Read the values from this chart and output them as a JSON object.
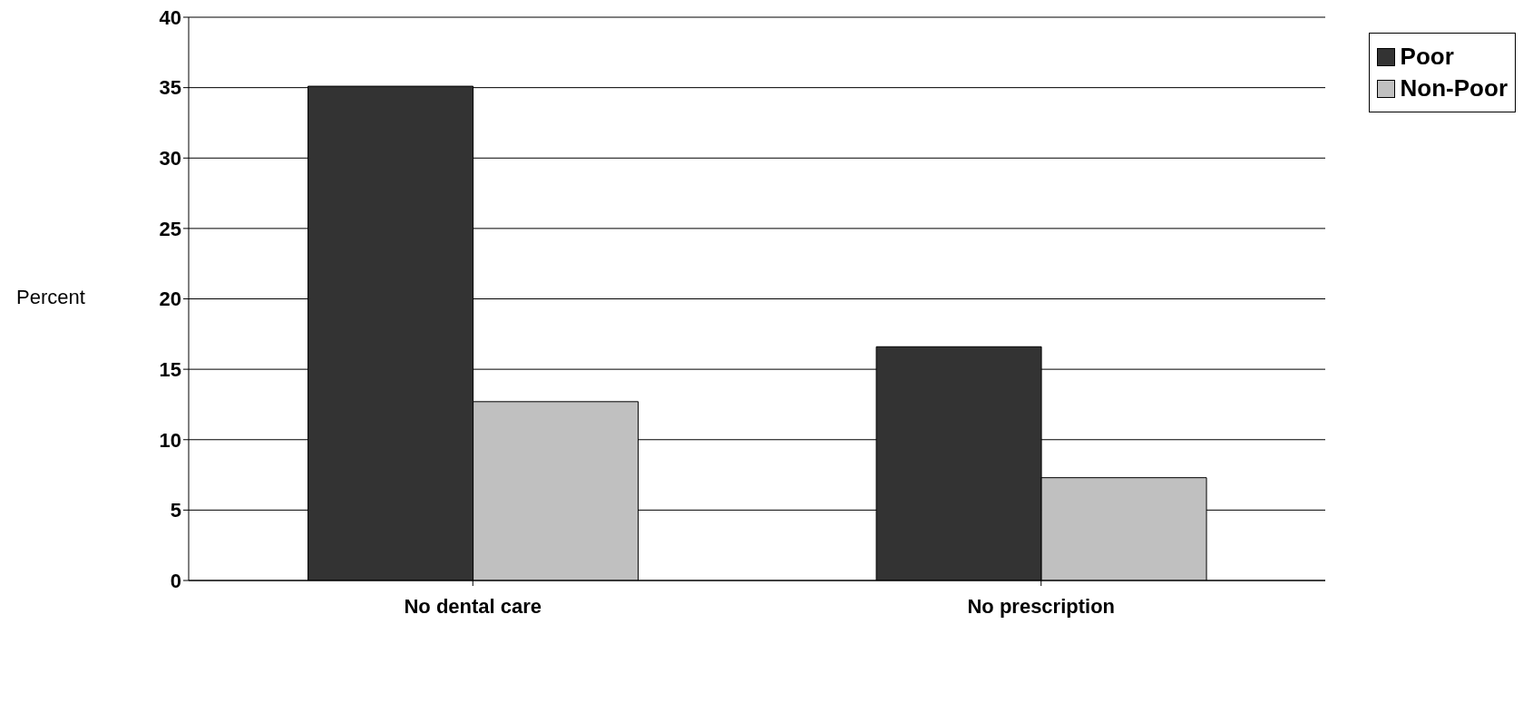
{
  "chart_data": {
    "type": "bar",
    "ylabel": "Percent",
    "categories": [
      "No dental care",
      "No prescription"
    ],
    "series": [
      {
        "name": "Poor",
        "color": "#333333",
        "values": [
          35.1,
          16.6
        ]
      },
      {
        "name": "Non-Poor",
        "color": "#c0c0c0",
        "values": [
          12.7,
          7.3
        ]
      }
    ],
    "ylim": [
      0,
      40
    ],
    "yticks": [
      0,
      5,
      10,
      15,
      20,
      25,
      30,
      35,
      40
    ],
    "grid": "y",
    "legend": "top right"
  }
}
